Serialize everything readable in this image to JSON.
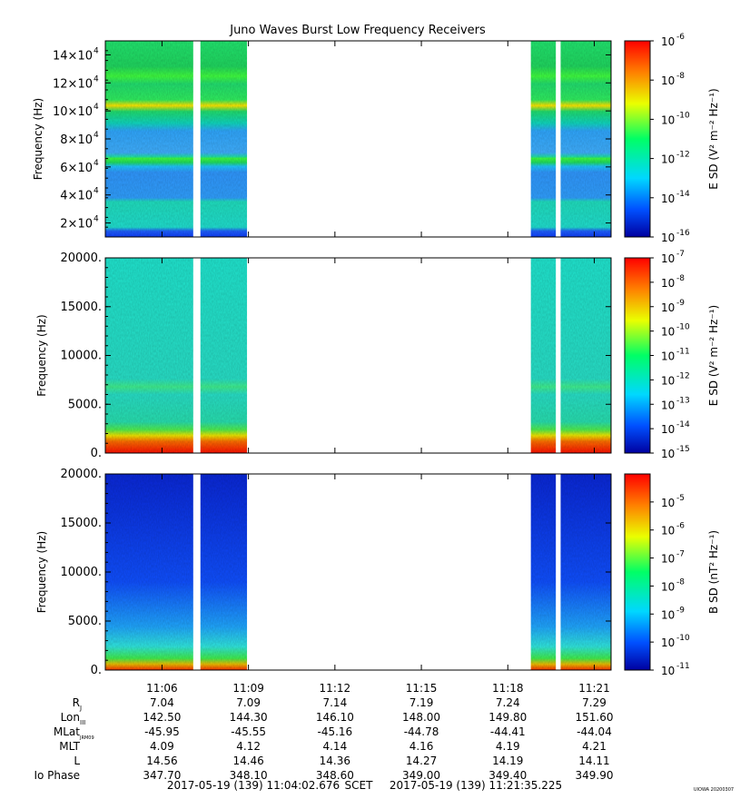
{
  "title": "Juno Waves Burst Low Frequency Receivers",
  "chart_data": [
    {
      "type": "heatmap",
      "ylabel": "Frequency (Hz)",
      "ylim": [
        10000,
        150000
      ],
      "yticks": [
        {
          "v": 20000,
          "m": "2",
          "e": "4"
        },
        {
          "v": 40000,
          "m": "4",
          "e": "4"
        },
        {
          "v": 60000,
          "m": "6",
          "e": "4"
        },
        {
          "v": 80000,
          "m": "8",
          "e": "4"
        },
        {
          "v": 100000,
          "m": "10",
          "e": "4"
        },
        {
          "v": 120000,
          "m": "12",
          "e": "4"
        },
        {
          "v": 140000,
          "m": "14",
          "e": "4"
        }
      ],
      "colorbar": {
        "label": "E SD (V² m⁻² Hz⁻¹)",
        "log_range": [
          -16,
          -6
        ],
        "ticks": [
          "-6",
          "-8",
          "-10",
          "-12",
          "-14",
          "-16"
        ]
      },
      "data_intervals": [
        [
          "11:04:02",
          "11:07:05"
        ],
        [
          "11:07:20",
          "11:08:57"
        ],
        [
          "11:18:48",
          "11:19:40"
        ],
        [
          "11:19:50",
          "11:21:35"
        ]
      ]
    },
    {
      "type": "heatmap",
      "ylabel": "Frequency (Hz)",
      "ylim": [
        0,
        20000
      ],
      "yticks": [
        "0.",
        "5000.",
        "10000.",
        "15000.",
        "20000."
      ],
      "colorbar": {
        "label": "E SD (V² m⁻² Hz⁻¹)",
        "log_range": [
          -15,
          -7
        ],
        "ticks": [
          "-7",
          "-8",
          "-9",
          "-10",
          "-11",
          "-12",
          "-13",
          "-14",
          "-15"
        ]
      },
      "data_intervals": [
        [
          "11:04:02",
          "11:07:05"
        ],
        [
          "11:07:20",
          "11:08:57"
        ],
        [
          "11:18:48",
          "11:19:40"
        ],
        [
          "11:19:50",
          "11:21:35"
        ]
      ]
    },
    {
      "type": "heatmap",
      "ylabel": "Frequency (Hz)",
      "ylim": [
        0,
        20000
      ],
      "yticks": [
        "0.",
        "5000.",
        "10000.",
        "15000.",
        "20000."
      ],
      "colorbar": {
        "label": "B SD (nT² Hz⁻¹)",
        "log_range": [
          -11,
          -4
        ],
        "ticks": [
          "-5",
          "-6",
          "-7",
          "-8",
          "-9",
          "-10",
          "-11"
        ]
      },
      "data_intervals": [
        [
          "11:04:02",
          "11:07:05"
        ],
        [
          "11:07:20",
          "11:08:57"
        ],
        [
          "11:18:48",
          "11:19:40"
        ],
        [
          "11:19:50",
          "11:21:35"
        ]
      ]
    }
  ],
  "time_axis": {
    "start": "11:04:02",
    "end": "11:21:35",
    "ticks": [
      "11:06",
      "11:09",
      "11:12",
      "11:15",
      "11:18",
      "11:21"
    ]
  },
  "ephemeris": [
    {
      "label": "R",
      "sub": "J",
      "values": [
        "7.04",
        "7.09",
        "7.14",
        "7.19",
        "7.24",
        "7.29"
      ]
    },
    {
      "label": "Lon",
      "sub": "III",
      "values": [
        "142.50",
        "144.30",
        "146.10",
        "148.00",
        "149.80",
        "151.60"
      ]
    },
    {
      "label": "MLat",
      "sub": "JRM09",
      "values": [
        "-45.95",
        "-45.55",
        "-45.16",
        "-44.78",
        "-44.41",
        "-44.04"
      ]
    },
    {
      "label": "MLT",
      "sub": "",
      "values": [
        "4.09",
        "4.12",
        "4.14",
        "4.16",
        "4.19",
        "4.21"
      ]
    },
    {
      "label": "L",
      "sub": "",
      "values": [
        "14.56",
        "14.46",
        "14.36",
        "14.27",
        "14.19",
        "14.11"
      ]
    },
    {
      "label": "Io Phase",
      "sub": "",
      "values": [
        "347.70",
        "348.10",
        "348.60",
        "349.00",
        "349.40",
        "349.90"
      ]
    }
  ],
  "footer": {
    "start": "2017-05-19 (139) 11:04:02.676",
    "scet": "SCET",
    "end": "2017-05-19 (139) 11:21:35.225",
    "stamp": "UIOWA 20200307"
  },
  "colors": {
    "background": "#ffffff",
    "axis": "#000000",
    "colormap": [
      "#0000a0",
      "#0050ff",
      "#00d8ff",
      "#00ff66",
      "#eaff00",
      "#ff8000",
      "#ff0000"
    ]
  }
}
